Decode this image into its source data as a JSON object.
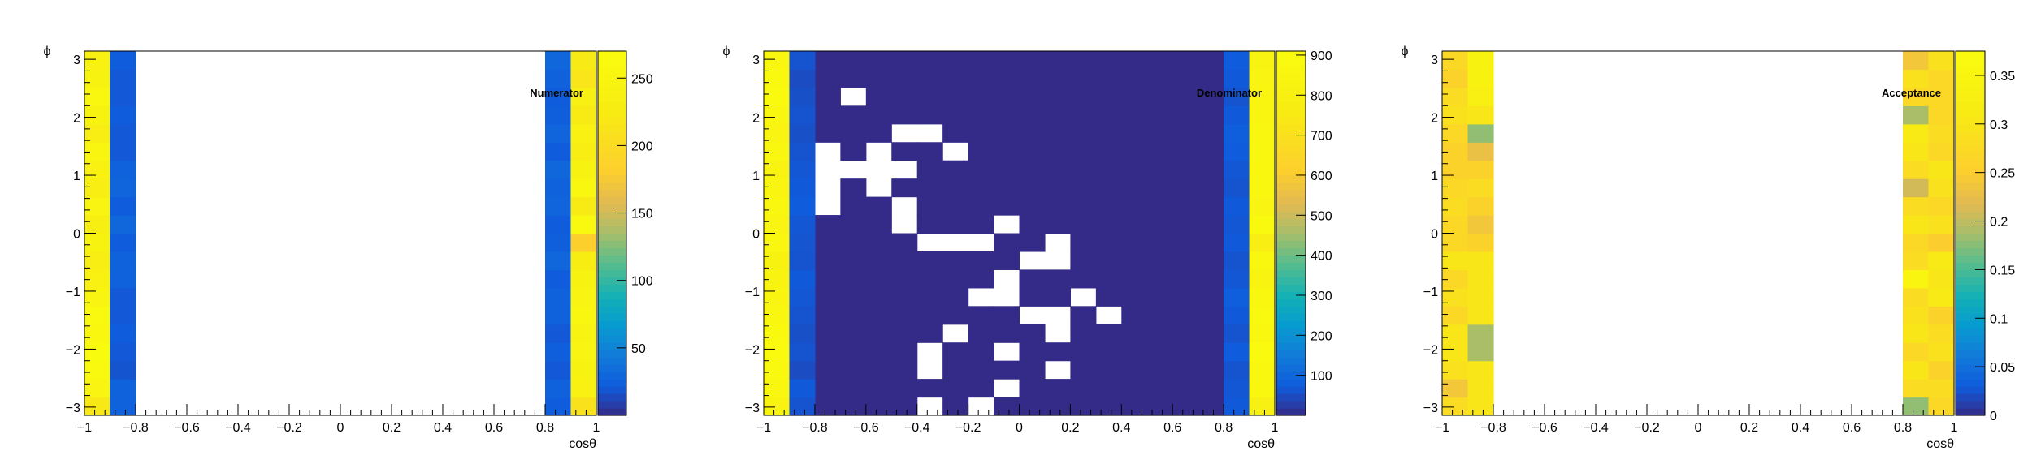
{
  "chart_data": [
    {
      "type": "heatmap",
      "title": "",
      "label": "Numerator",
      "xlabel": "cosθ",
      "ylabel": "ϕ",
      "xlim": [
        -1,
        1
      ],
      "ylim": [
        -3.14159,
        3.14159
      ],
      "x_bins": 20,
      "y_bins": 20,
      "x_ticks": [
        -1,
        -0.8,
        -0.6,
        -0.4,
        -0.2,
        0,
        0.2,
        0.4,
        0.6,
        0.8,
        1
      ],
      "x_tick_labels": [
        "−1",
        "−0.8",
        "−0.6",
        "−0.4",
        "−0.2",
        "0",
        "0.2",
        "0.4",
        "0.6",
        "0.8",
        "1"
      ],
      "y_ticks": [
        -3,
        -2,
        -1,
        0,
        1,
        2,
        3
      ],
      "y_tick_labels": [
        "−3",
        "−2",
        "−1",
        "0",
        "1",
        "2",
        "3"
      ],
      "z_range": [
        0,
        270
      ],
      "z_ticks": [
        50,
        100,
        150,
        200,
        250
      ],
      "z_tick_labels": [
        "50",
        "100",
        "150",
        "200",
        "250"
      ],
      "grid": false,
      "columns": [
        {
          "bin": 0,
          "values": [
            220,
            250,
            262,
            270,
            255,
            262,
            250,
            240,
            232,
            245,
            236,
            250,
            232,
            240,
            252,
            232,
            245,
            256,
            245,
            240
          ]
        },
        {
          "bin": 1,
          "values": [
            25,
            25,
            18,
            20,
            22,
            20,
            20,
            25,
            25,
            22,
            30,
            22,
            28,
            25,
            20,
            20,
            22,
            20,
            20,
            22
          ]
        },
        {
          "bin": 18,
          "values": [
            22,
            25,
            20,
            24,
            20,
            25,
            26,
            22,
            30,
            24,
            22,
            28,
            25,
            30,
            22,
            28,
            24,
            22,
            25,
            30
          ]
        },
        {
          "bin": 19,
          "values": [
            210,
            240,
            245,
            250,
            248,
            255,
            250,
            245,
            230,
            182,
            260,
            225,
            255,
            245,
            232,
            240,
            225,
            235,
            215,
            222
          ]
        }
      ]
    },
    {
      "type": "heatmap",
      "title": "",
      "label": "Denominator",
      "xlabel": "cosθ",
      "ylabel": "ϕ",
      "xlim": [
        -1,
        1
      ],
      "ylim": [
        -3.14159,
        3.14159
      ],
      "x_bins": 20,
      "y_bins": 20,
      "x_ticks": [
        -1,
        -0.8,
        -0.6,
        -0.4,
        -0.2,
        0,
        0.2,
        0.4,
        0.6,
        0.8,
        1
      ],
      "x_tick_labels": [
        "−1",
        "−0.8",
        "−0.6",
        "−0.4",
        "−0.2",
        "0",
        "0.2",
        "0.4",
        "0.6",
        "0.8",
        "1"
      ],
      "y_ticks": [
        -3,
        -2,
        -1,
        0,
        1,
        2,
        3
      ],
      "y_tick_labels": [
        "−3",
        "−2",
        "−1",
        "0",
        "1",
        "2",
        "3"
      ],
      "z_range": [
        0,
        910
      ],
      "z_ticks": [
        100,
        200,
        300,
        400,
        500,
        600,
        700,
        800,
        900
      ],
      "z_tick_labels": [
        "100",
        "200",
        "300",
        "400",
        "500",
        "600",
        "700",
        "800",
        "900"
      ],
      "grid": false,
      "edge_columns": [
        {
          "bin": 0,
          "values": [
            830,
            860,
            880,
            905,
            880,
            870,
            850,
            830,
            820,
            870,
            840,
            860,
            850,
            830,
            860,
            840,
            860,
            900,
            880,
            860
          ]
        },
        {
          "bin": 1,
          "values": [
            60,
            70,
            50,
            60,
            55,
            60,
            65,
            70,
            60,
            62,
            65,
            75,
            70,
            65,
            60,
            55,
            60,
            55,
            50,
            60
          ]
        },
        {
          "bin": 18,
          "values": [
            70,
            65,
            60,
            75,
            60,
            70,
            80,
            65,
            60,
            70,
            65,
            70,
            60,
            65,
            75,
            80,
            70,
            60,
            70,
            75
          ]
        },
        {
          "bin": 19,
          "values": [
            800,
            860,
            860,
            900,
            870,
            880,
            860,
            830,
            860,
            780,
            880,
            840,
            860,
            860,
            860,
            870,
            850,
            850,
            840,
            830
          ]
        }
      ],
      "interior_value": 1,
      "empty_cells": [
        [
          17,
          0
        ],
        [
          17,
          3
        ],
        [
          13,
          1
        ],
        [
          13,
          2
        ],
        [
          13,
          3
        ],
        [
          14,
          2
        ],
        [
          13,
          4
        ],
        [
          13,
          5
        ],
        [
          14,
          4
        ],
        [
          15,
          5
        ],
        [
          15,
          6
        ],
        [
          14,
          7
        ],
        [
          12,
          2
        ],
        [
          12,
          4
        ],
        [
          11,
          2
        ],
        [
          11,
          5
        ],
        [
          10,
          5
        ],
        [
          10,
          9
        ],
        [
          9,
          7
        ],
        [
          9,
          8
        ],
        [
          9,
          11
        ],
        [
          9,
          6
        ],
        [
          8,
          10
        ],
        [
          8,
          11
        ],
        [
          7,
          9
        ],
        [
          6,
          8
        ],
        [
          6,
          9
        ],
        [
          6,
          12
        ],
        [
          5,
          13
        ],
        [
          5,
          10
        ],
        [
          5,
          11
        ],
        [
          4,
          7
        ],
        [
          4,
          11
        ],
        [
          3,
          6
        ],
        [
          3,
          9
        ],
        [
          2,
          6
        ],
        [
          2,
          11
        ],
        [
          1,
          9
        ],
        [
          0,
          6
        ],
        [
          0,
          8
        ]
      ]
    },
    {
      "type": "heatmap",
      "title": "",
      "label": "Acceptance",
      "xlabel": "cosθ",
      "ylabel": "ϕ",
      "xlim": [
        -1,
        1
      ],
      "ylim": [
        -3.14159,
        3.14159
      ],
      "x_bins": 20,
      "y_bins": 20,
      "x_ticks": [
        -1,
        -0.8,
        -0.6,
        -0.4,
        -0.2,
        0,
        0.2,
        0.4,
        0.6,
        0.8,
        1
      ],
      "x_tick_labels": [
        "−1",
        "−0.8",
        "−0.6",
        "−0.4",
        "−0.2",
        "0",
        "0.2",
        "0.4",
        "0.6",
        "0.8",
        "1"
      ],
      "y_ticks": [
        -3,
        -2,
        -1,
        0,
        1,
        2,
        3
      ],
      "y_tick_labels": [
        "−3",
        "−2",
        "−1",
        "0",
        "1",
        "2",
        "3"
      ],
      "z_range": [
        0,
        0.375
      ],
      "z_ticks": [
        0,
        0.05,
        0.1,
        0.15,
        0.2,
        0.25,
        0.3,
        0.35
      ],
      "z_tick_labels": [
        "0",
        "0.05",
        "0.1",
        "0.15",
        "0.2",
        "0.25",
        "0.3",
        "0.35"
      ],
      "grid": false,
      "columns": [
        {
          "bin": 0,
          "values": [
            0.28,
            0.24,
            0.29,
            0.3,
            0.3,
            0.27,
            0.29,
            0.27,
            0.3,
            0.27,
            0.27,
            0.28,
            0.27,
            0.26,
            0.26,
            0.27,
            0.29,
            0.28,
            0.26,
            0.27
          ]
        },
        {
          "bin": 1,
          "values": [
            0.3,
            0.3,
            0.3,
            0.19,
            0.19,
            0.3,
            0.3,
            0.3,
            0.3,
            0.26,
            0.24,
            0.26,
            0.28,
            0.26,
            0.23,
            0.18,
            0.3,
            0.33,
            0.34,
            0.34
          ]
        },
        {
          "bin": 18,
          "values": [
            0.18,
            0.28,
            0.3,
            0.27,
            0.3,
            0.29,
            0.28,
            0.35,
            0.28,
            0.27,
            0.3,
            0.28,
            0.21,
            0.28,
            0.3,
            0.31,
            0.19,
            0.27,
            0.29,
            0.24
          ]
        },
        {
          "bin": 19,
          "values": [
            0.27,
            0.28,
            0.26,
            0.29,
            0.28,
            0.26,
            0.31,
            0.3,
            0.31,
            0.25,
            0.29,
            0.27,
            0.29,
            0.3,
            0.27,
            0.28,
            0.27,
            0.27,
            0.27,
            0.29
          ]
        }
      ]
    }
  ]
}
